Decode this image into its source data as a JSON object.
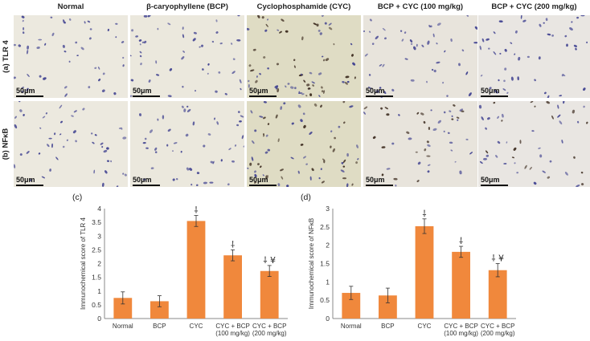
{
  "figure": {
    "columns": [
      "Normal",
      "β-caryophyllene (BCP)",
      "Cyclophosphamide (CYC)",
      "BCP + CYC (100 mg/kg)",
      "BCP + CYC (200 mg/kg)"
    ],
    "rows": [
      "(a) TLR 4",
      "(b) NFκB"
    ],
    "scale_label": "50μm",
    "panel_colors": [
      "#ece9df",
      "#ebe8dd",
      "#dfdcc4",
      "#e8e4dc",
      "#e9e6e2"
    ]
  },
  "chart_data": [
    {
      "panel_label": "(c)",
      "type": "bar",
      "categories": [
        "Normal",
        "BCP",
        "CYC",
        "CYC + BCP\n(100 mg/kg)",
        "CYC + BCP\n(200 mg/kg)"
      ],
      "values": [
        0.75,
        0.63,
        3.55,
        2.3,
        1.73
      ],
      "errors": [
        0.22,
        0.2,
        0.2,
        0.2,
        0.2
      ],
      "annotations": [
        "",
        "",
        "⸸",
        "⸸",
        "⸸ ¥"
      ],
      "ylabel": "Immunochemical score of TLR 4",
      "ylim": [
        0,
        4
      ],
      "yticks": [
        "0",
        "0.5",
        "1",
        "1.5",
        "2",
        "2.5",
        "3",
        "3.5",
        "4"
      ],
      "grid": false,
      "bar_color": "#f0883c"
    },
    {
      "panel_label": "(d)",
      "type": "bar",
      "categories": [
        "Normal",
        "BCP",
        "CYC",
        "CYC + BCP\n(100 mg/kg)",
        "CYC + BCP\n(200 mg/kg)"
      ],
      "values": [
        0.7,
        0.63,
        2.52,
        1.82,
        1.32
      ],
      "errors": [
        0.18,
        0.2,
        0.2,
        0.15,
        0.18
      ],
      "annotations": [
        "",
        "",
        "⸸",
        "⸸",
        "⸸ ¥"
      ],
      "ylabel": "Immunochemical score of NFκB",
      "ylim": [
        0,
        3
      ],
      "yticks": [
        "0",
        "0.5",
        "1",
        "1.5",
        "2",
        "2.5",
        "3"
      ],
      "grid": false,
      "bar_color": "#f0883c"
    }
  ]
}
